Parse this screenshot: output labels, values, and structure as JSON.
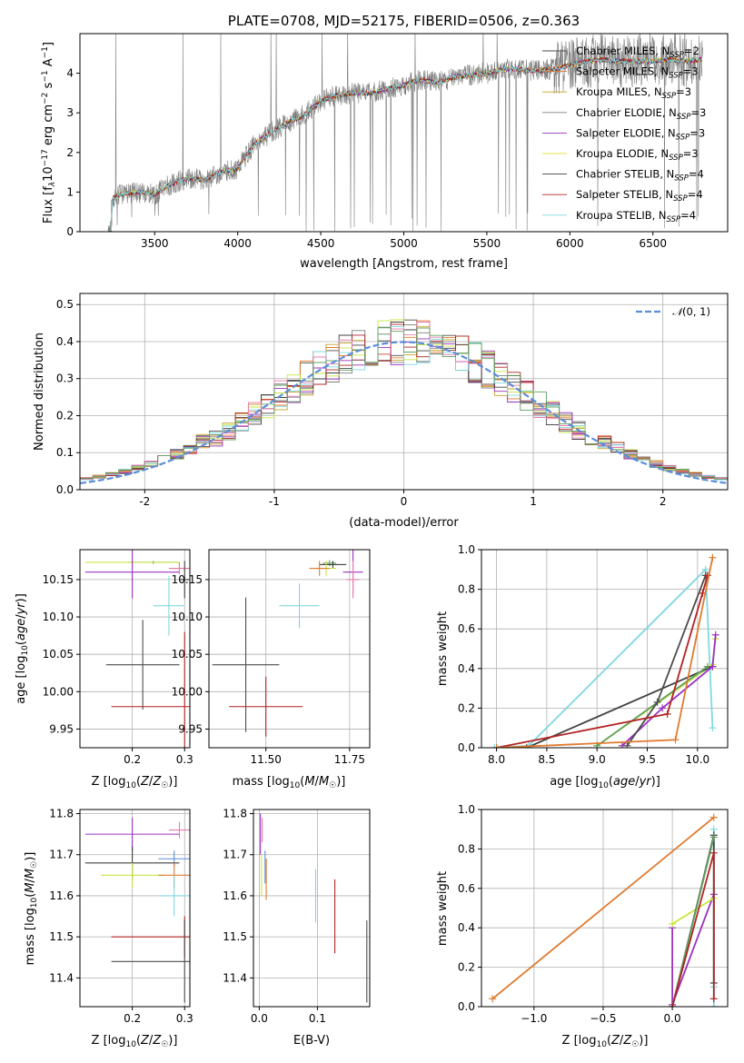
{
  "chart_data": [
    {
      "id": "spectrum",
      "type": "line",
      "title": "PLATE=0708, MJD=52175, FIBERID=0506, z=0.363",
      "xlabel": "wavelength [Angstrom, rest frame]",
      "ylabel": "Flux [f_λ 10^-17 erg cm^-2 s^-1 A^-1]",
      "xlim": [
        3050,
        6950
      ],
      "ylim": [
        0,
        5
      ],
      "xticks": [
        3500,
        4000,
        4500,
        5000,
        5500,
        6000,
        6500
      ],
      "yticks": [
        0,
        1,
        2,
        3,
        4
      ],
      "grid": false,
      "legend_position": "top-right",
      "series": [
        {
          "name": "Chabrier MILES, N_SSP=2",
          "color": "#4d4d4d",
          "model": true
        },
        {
          "name": "Salpeter MILES, N_SSP=3",
          "color": "#e07a2e",
          "model": true
        },
        {
          "name": "Kroupa MILES, N_SSP=3",
          "color": "#c8a028",
          "model": true
        },
        {
          "name": "Chabrier ELODIE, N_SSP=3",
          "color": "#7f7f7f",
          "model": false
        },
        {
          "name": "Salpeter ELODIE, N_SSP=3",
          "color": "#9b30c0",
          "model": true
        },
        {
          "name": "Kroupa ELODIE, N_SSP=3",
          "color": "#e0e040",
          "model": true
        },
        {
          "name": "Chabrier STELIB, N_SSP=4",
          "color": "#404040",
          "model": true
        },
        {
          "name": "Salpeter STELIB, N_SSP=4",
          "color": "#b22222",
          "model": true
        },
        {
          "name": "Kroupa STELIB, N_SSP=4",
          "color": "#7fd8e0",
          "model": true
        }
      ],
      "anchor_x": [
        3200,
        3250,
        3300,
        3400,
        3500,
        3600,
        3700,
        3800,
        3900,
        4000,
        4100,
        4200,
        4300,
        4400,
        4500,
        4600,
        4700,
        4800,
        4900,
        5000,
        5100,
        5200,
        5300,
        5400,
        5500,
        5600,
        5700,
        5800,
        5900,
        6000,
        6100,
        6200,
        6300,
        6400,
        6500,
        6600,
        6700,
        6800
      ],
      "anchor_y": [
        0,
        0.85,
        0.95,
        1.0,
        0.95,
        1.2,
        1.35,
        1.3,
        1.5,
        1.6,
        2.2,
        2.5,
        2.75,
        2.95,
        3.3,
        3.45,
        3.5,
        3.5,
        3.6,
        3.7,
        3.85,
        3.75,
        3.9,
        3.95,
        4.0,
        4.1,
        4.1,
        4.05,
        4.1,
        4.2,
        4.3,
        4.35,
        4.3,
        4.3,
        4.3,
        4.35,
        4.3,
        4.35
      ]
    },
    {
      "id": "residuals",
      "type": "line",
      "xlabel": "(data-model)/error",
      "ylabel": "Normed distribution",
      "xlim": [
        -2.5,
        2.5
      ],
      "ylim": [
        0,
        0.53
      ],
      "xticks": [
        -2,
        -1,
        0,
        1,
        2
      ],
      "yticks": [
        0.0,
        0.1,
        0.2,
        0.3,
        0.4,
        0.5
      ],
      "grid": true,
      "legend_position": "top-right",
      "legend": "N(0,1)",
      "bin_width": 0.1,
      "gaussian": {
        "mu": 0,
        "sigma": 1,
        "color": "#5b8dd9"
      },
      "histogram_colors": [
        "#4d4d4d",
        "#e07a2e",
        "#c8a028",
        "#7f7f7f",
        "#9b30c0",
        "#c8e640",
        "#404040",
        "#b22222",
        "#7fd8e0",
        "#e87ab0",
        "#5fa05f"
      ]
    },
    {
      "id": "age_vs_Z",
      "type": "scatter",
      "xlabel": "Z [log10(Z/Z_☉)]",
      "ylabel": "age  [log10(age/yr)]",
      "xlim": [
        0.1,
        0.31
      ],
      "ylim": [
        9.925,
        10.19
      ],
      "xticks": [
        0.2,
        0.3
      ],
      "yticks": [
        9.95,
        10.0,
        10.05,
        10.1,
        10.15
      ],
      "grid": true,
      "points": [
        {
          "x": 0.24,
          "xerr": 0.05,
          "y": 10.173,
          "yerr": 0.002,
          "color": "#5fa05f"
        },
        {
          "x": 0.2,
          "xerr": 0.09,
          "y": 10.173,
          "yerr": 0.002,
          "color": "#c8e640"
        },
        {
          "x": 0.2,
          "xerr": 0.09,
          "y": 10.16,
          "yerr": 0.035,
          "color": "#9b30c0"
        },
        {
          "x": 0.29,
          "xerr": 0.02,
          "y": 10.165,
          "yerr": 0.008,
          "color": "#e07a2e"
        },
        {
          "x": 0.29,
          "xerr": 0.02,
          "y": 10.165,
          "yerr": 0.008,
          "color": "#e87ab0"
        },
        {
          "x": 0.3,
          "xerr": 0.01,
          "y": 10.15,
          "yerr": 0.025,
          "color": "#404040"
        },
        {
          "x": 0.27,
          "xerr": 0.03,
          "y": 10.115,
          "yerr": 0.04,
          "color": "#7fd8e0"
        },
        {
          "x": 0.22,
          "xerr": 0.07,
          "y": 10.036,
          "yerr": 0.06,
          "color": "#4d4d4d"
        },
        {
          "x": 0.3,
          "xerr": 0.14,
          "y": 9.98,
          "yerr": 0.1,
          "color": "#b22222"
        }
      ]
    },
    {
      "id": "age_vs_mass",
      "type": "scatter",
      "xlabel": "mass [log10(M/M_☉)]",
      "xlim": [
        11.33,
        11.81
      ],
      "ylim": [
        9.925,
        10.19
      ],
      "xticks": [
        11.5,
        11.75
      ],
      "yticks": [
        9.95,
        10.0,
        10.05,
        10.1,
        10.15
      ],
      "grid": true,
      "points": [
        {
          "x": 11.69,
          "xerr": 0.02,
          "y": 10.172,
          "yerr": 0.004,
          "color": "#5fa05f"
        },
        {
          "x": 11.7,
          "xerr": 0.04,
          "y": 10.17,
          "yerr": 0.005,
          "color": "#404040"
        },
        {
          "x": 11.68,
          "xerr": 0.03,
          "y": 10.165,
          "yerr": 0.01,
          "color": "#c8e640"
        },
        {
          "x": 11.66,
          "xerr": 0.03,
          "y": 10.165,
          "yerr": 0.01,
          "color": "#e07a2e"
        },
        {
          "x": 11.76,
          "xerr": 0.03,
          "y": 10.16,
          "yerr": 0.03,
          "color": "#9b30c0"
        },
        {
          "x": 11.76,
          "xerr": 0.02,
          "y": 10.15,
          "yerr": 0.025,
          "color": "#e87ab0"
        },
        {
          "x": 11.6,
          "xerr": 0.06,
          "y": 10.115,
          "yerr": 0.03,
          "color": "#7fd8e0"
        },
        {
          "x": 11.44,
          "xerr": 0.1,
          "y": 10.036,
          "yerr": 0.09,
          "color": "#4d4d4d"
        },
        {
          "x": 11.5,
          "xerr": 0.11,
          "y": 9.98,
          "yerr": 0.04,
          "color": "#b22222"
        }
      ]
    },
    {
      "id": "weight_vs_age",
      "type": "line",
      "xlabel": "age  [log10(age/yr)]",
      "ylabel": "mass weight",
      "xlim": [
        7.85,
        10.3
      ],
      "ylim": [
        0,
        1
      ],
      "xticks": [
        8.0,
        8.5,
        9.0,
        9.5,
        10.0
      ],
      "yticks": [
        0.0,
        0.2,
        0.4,
        0.6,
        0.8,
        1.0
      ],
      "grid": true,
      "series": [
        {
          "color": "#7fd8e0",
          "x": [
            7.98,
            8.32,
            10.08,
            10.15
          ],
          "y": [
            0.0,
            0.01,
            0.9,
            0.1
          ]
        },
        {
          "color": "#c8e640",
          "x": [
            9.0,
            10.15,
            10.18
          ],
          "y": [
            0.01,
            0.42,
            0.55
          ]
        },
        {
          "color": "#404040",
          "x": [
            8.3,
            10.15
          ],
          "y": [
            0.0,
            0.41
          ]
        },
        {
          "color": "#5fa05f",
          "x": [
            9.0,
            10.1
          ],
          "y": [
            0.01,
            0.41
          ]
        },
        {
          "color": "#9b30c0",
          "x": [
            9.25,
            9.65,
            10.15,
            10.18
          ],
          "y": [
            0.01,
            0.2,
            0.41,
            0.57
          ]
        },
        {
          "color": "#4d4d4d",
          "x": [
            9.3,
            9.6,
            10.08
          ],
          "y": [
            0.01,
            0.23,
            0.87
          ]
        },
        {
          "color": "#b22222",
          "x": [
            8.0,
            9.7,
            10.05,
            10.1
          ],
          "y": [
            0.0,
            0.17,
            0.78,
            0.87
          ]
        },
        {
          "color": "#e07a2e",
          "x": [
            8.0,
            9.78,
            10.15
          ],
          "y": [
            0.0,
            0.04,
            0.96
          ]
        }
      ]
    },
    {
      "id": "mass_vs_Z",
      "type": "scatter",
      "xlabel": "Z [log10(Z/Z_☉)]",
      "ylabel": "mass [log10(M/M_☉)]",
      "xlim": [
        0.1,
        0.31
      ],
      "ylim": [
        11.33,
        11.81
      ],
      "xticks": [
        0.2,
        0.3
      ],
      "yticks": [
        11.4,
        11.5,
        11.6,
        11.7,
        11.8
      ],
      "grid": true,
      "points": [
        {
          "x": 0.2,
          "xerr": 0.09,
          "y": 11.75,
          "yerr": 0.04,
          "color": "#9b30c0"
        },
        {
          "x": 0.29,
          "xerr": 0.02,
          "y": 11.76,
          "yerr": 0.02,
          "color": "#e87ab0"
        },
        {
          "x": 0.28,
          "xerr": 0.03,
          "y": 11.69,
          "yerr": 0.02,
          "color": "#5b8dd9"
        },
        {
          "x": 0.2,
          "xerr": 0.09,
          "y": 11.68,
          "yerr": 0.04,
          "color": "#404040"
        },
        {
          "x": 0.2,
          "xerr": 0.06,
          "y": 11.65,
          "yerr": 0.03,
          "color": "#c8e640"
        },
        {
          "x": 0.28,
          "xerr": 0.03,
          "y": 11.65,
          "yerr": 0.03,
          "color": "#e07a2e"
        },
        {
          "x": 0.28,
          "xerr": 0.03,
          "y": 11.6,
          "yerr": 0.05,
          "color": "#7fd8e0"
        },
        {
          "x": 0.3,
          "xerr": 0.14,
          "y": 11.5,
          "yerr": 0.05,
          "color": "#b22222"
        },
        {
          "x": 0.3,
          "xerr": 0.14,
          "y": 11.44,
          "yerr": 0.1,
          "color": "#4d4d4d"
        }
      ]
    },
    {
      "id": "mass_vs_ebv",
      "type": "scatter",
      "xlabel": "E(B-V)",
      "xlim": [
        -0.01,
        0.19
      ],
      "ylim": [
        11.33,
        11.81
      ],
      "xticks": [
        0.0,
        0.1
      ],
      "yticks": [
        11.4,
        11.5,
        11.6,
        11.7,
        11.8
      ],
      "grid": true,
      "points": [
        {
          "x": 0.002,
          "xerr": 0.0,
          "y": 11.75,
          "yerr": 0.05,
          "color": "#9b30c0"
        },
        {
          "x": 0.005,
          "xerr": 0.0,
          "y": 11.76,
          "yerr": 0.03,
          "color": "#e87ab0"
        },
        {
          "x": 0.01,
          "xerr": 0.0,
          "y": 11.67,
          "yerr": 0.04,
          "color": "#5b8dd9"
        },
        {
          "x": 0.004,
          "xerr": 0.0,
          "y": 11.65,
          "yerr": 0.05,
          "color": "#c8e640"
        },
        {
          "x": 0.012,
          "xerr": 0.0,
          "y": 11.64,
          "yerr": 0.05,
          "color": "#e07a2e"
        },
        {
          "x": 0.097,
          "xerr": 0.0,
          "y": 11.6,
          "yerr": 0.065,
          "color": "#7fd8e0"
        },
        {
          "x": 0.13,
          "xerr": 0.0,
          "y": 11.55,
          "yerr": 0.09,
          "color": "#b22222"
        },
        {
          "x": 0.185,
          "xerr": 0.0,
          "y": 11.44,
          "yerr": 0.1,
          "color": "#4d4d4d"
        }
      ]
    },
    {
      "id": "weight_vs_Z",
      "type": "line",
      "xlabel": "Z [log10(Z/Z_☉)]",
      "ylabel": "mass weight",
      "xlim": [
        -1.38,
        0.4
      ],
      "ylim": [
        0,
        1
      ],
      "xticks": [
        -1.0,
        -0.5,
        0.0
      ],
      "yticks": [
        0.0,
        0.2,
        0.4,
        0.6,
        0.8,
        1.0
      ],
      "grid": true,
      "series": [
        {
          "color": "#9b30c0",
          "x": [
            0.0,
            0.0,
            0.3
          ],
          "y": [
            0.4,
            0.01,
            0.57
          ]
        },
        {
          "color": "#c8e640",
          "x": [
            0.0,
            0.3
          ],
          "y": [
            0.42,
            0.55
          ]
        },
        {
          "color": "#7fd8e0",
          "x": [
            0.3,
            0.3,
            0.3
          ],
          "y": [
            0.9,
            0.1,
            0.0
          ]
        },
        {
          "color": "#404040",
          "x": [
            0.0,
            0.3,
            0.3
          ],
          "y": [
            0.0,
            0.87,
            0.12
          ]
        },
        {
          "color": "#5fa05f",
          "x": [
            0.0,
            0.3
          ],
          "y": [
            0.0,
            0.86
          ]
        },
        {
          "color": "#b22222",
          "x": [
            0.0,
            0.3,
            0.3
          ],
          "y": [
            0.0,
            0.78,
            0.04
          ]
        },
        {
          "color": "#e07a2e",
          "x": [
            -1.3,
            0.3
          ],
          "y": [
            0.04,
            0.96
          ]
        }
      ]
    }
  ]
}
